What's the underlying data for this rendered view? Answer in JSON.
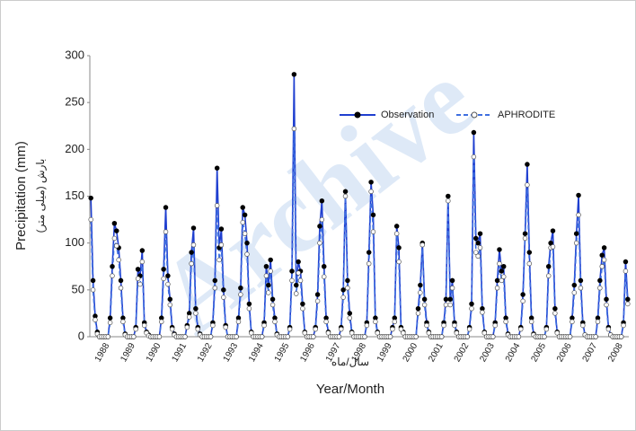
{
  "chart_data": {
    "type": "line",
    "watermark": "Archive",
    "y_label": "Precipitation (mm)",
    "y_label_alt": "بارش (میلی متر)",
    "x_label": "Year/Month",
    "x_label_alt": "سال/ماه",
    "legend": "top-right",
    "ylim": [
      0,
      300
    ],
    "yticks": [
      0,
      50,
      100,
      150,
      200,
      250,
      300
    ],
    "categories": [
      null,
      null,
      null,
      null,
      null,
      null,
      "1988",
      null,
      null,
      null,
      null,
      null,
      null,
      null,
      null,
      null,
      null,
      null,
      "1989",
      null,
      null,
      null,
      null,
      null,
      null,
      null,
      null,
      null,
      null,
      null,
      "1990",
      null,
      null,
      null,
      null,
      null,
      null,
      null,
      null,
      null,
      null,
      null,
      "1991",
      null,
      null,
      null,
      null,
      null,
      null,
      null,
      null,
      null,
      null,
      null,
      "1992",
      null,
      null,
      null,
      null,
      null,
      null,
      null,
      null,
      null,
      null,
      null,
      "1993",
      null,
      null,
      null,
      null,
      null,
      null,
      null,
      null,
      null,
      null,
      null,
      "1994",
      null,
      null,
      null,
      null,
      null,
      null,
      null,
      null,
      null,
      null,
      null,
      "1995",
      null,
      null,
      null,
      null,
      null,
      null,
      null,
      null,
      null,
      null,
      null,
      "1996",
      null,
      null,
      null,
      null,
      null,
      null,
      null,
      null,
      null,
      null,
      null,
      "1997",
      null,
      null,
      null,
      null,
      null,
      null,
      null,
      null,
      null,
      null,
      null,
      "1998",
      null,
      null,
      null,
      null,
      null,
      null,
      null,
      null,
      null,
      null,
      null,
      "1999",
      null,
      null,
      null,
      null,
      null,
      null,
      null,
      null,
      null,
      null,
      null,
      "2000",
      null,
      null,
      null,
      null,
      null,
      null,
      null,
      null,
      null,
      null,
      null,
      "2001",
      null,
      null,
      null,
      null,
      null,
      null,
      null,
      null,
      null,
      null,
      null,
      "2002",
      null,
      null,
      null,
      null,
      null,
      null,
      null,
      null,
      null,
      null,
      null,
      "2003",
      null,
      null,
      null,
      null,
      null,
      null,
      null,
      null,
      null,
      null,
      null,
      "2004",
      null,
      null,
      null,
      null,
      null,
      null,
      null,
      null,
      null,
      null,
      null,
      "2005",
      null,
      null,
      null,
      null,
      null,
      null,
      null,
      null,
      null,
      null,
      null,
      "2006",
      null,
      null,
      null,
      null,
      null,
      null,
      null,
      null,
      null,
      null,
      null,
      "2007",
      null,
      null,
      null,
      null,
      null,
      null,
      null,
      null,
      null,
      null,
      null,
      "2008",
      null,
      null,
      null,
      null,
      null
    ],
    "series": [
      {
        "name": "Observation",
        "color": "#1f3fd0",
        "marker": "#000000",
        "dashed": false,
        "values": [
          148,
          60,
          22,
          5,
          0,
          0,
          0,
          0,
          0,
          20,
          75,
          121,
          113,
          95,
          60,
          20,
          3,
          0,
          0,
          0,
          0,
          10,
          72,
          65,
          92,
          15,
          5,
          2,
          0,
          0,
          0,
          0,
          0,
          20,
          72,
          138,
          65,
          40,
          10,
          3,
          0,
          0,
          0,
          0,
          0,
          12,
          25,
          90,
          116,
          30,
          10,
          3,
          0,
          0,
          0,
          0,
          0,
          15,
          60,
          180,
          95,
          115,
          50,
          12,
          0,
          0,
          0,
          0,
          0,
          20,
          52,
          138,
          130,
          100,
          35,
          5,
          0,
          0,
          0,
          0,
          0,
          15,
          75,
          55,
          82,
          40,
          20,
          3,
          0,
          0,
          0,
          0,
          0,
          10,
          70,
          280,
          55,
          80,
          70,
          35,
          5,
          0,
          0,
          0,
          0,
          10,
          45,
          118,
          145,
          75,
          20,
          5,
          0,
          0,
          0,
          0,
          0,
          10,
          50,
          155,
          60,
          25,
          5,
          0,
          0,
          0,
          0,
          0,
          0,
          15,
          90,
          165,
          130,
          20,
          5,
          0,
          0,
          0,
          0,
          0,
          0,
          10,
          20,
          118,
          95,
          10,
          5,
          0,
          0,
          0,
          0,
          0,
          0,
          30,
          55,
          100,
          40,
          15,
          5,
          0,
          0,
          0,
          0,
          0,
          0,
          15,
          40,
          150,
          40,
          60,
          15,
          5,
          0,
          0,
          0,
          0,
          0,
          10,
          35,
          218,
          105,
          100,
          110,
          30,
          5,
          0,
          0,
          0,
          0,
          15,
          60,
          93,
          70,
          75,
          20,
          3,
          0,
          0,
          0,
          0,
          0,
          10,
          45,
          110,
          184,
          90,
          20,
          3,
          0,
          0,
          0,
          0,
          0,
          10,
          75,
          100,
          113,
          30,
          5,
          0,
          0,
          0,
          0,
          0,
          0,
          20,
          55,
          110,
          151,
          60,
          15,
          2,
          0,
          0,
          0,
          0,
          0,
          20,
          60,
          87,
          95,
          40,
          10,
          2,
          0,
          0,
          0,
          0,
          0,
          15,
          80,
          40
        ]
      },
      {
        "name": "APHRODITE",
        "color": "#3f6fe0",
        "marker": "#ffffff",
        "dashed": true,
        "values": [
          125,
          50,
          18,
          3,
          0,
          0,
          0,
          0,
          0,
          15,
          65,
          105,
          97,
          82,
          52,
          16,
          2,
          0,
          0,
          0,
          0,
          8,
          62,
          56,
          80,
          12,
          4,
          1,
          0,
          0,
          0,
          0,
          0,
          16,
          62,
          112,
          56,
          34,
          8,
          2,
          0,
          0,
          0,
          0,
          0,
          10,
          21,
          78,
          98,
          25,
          8,
          2,
          0,
          0,
          0,
          0,
          0,
          12,
          52,
          140,
          82,
          98,
          42,
          10,
          0,
          0,
          0,
          0,
          0,
          16,
          45,
          122,
          110,
          88,
          30,
          4,
          0,
          0,
          0,
          0,
          0,
          12,
          65,
          47,
          70,
          34,
          16,
          2,
          0,
          0,
          0,
          0,
          0,
          8,
          60,
          222,
          46,
          68,
          60,
          30,
          4,
          0,
          0,
          0,
          0,
          8,
          38,
          100,
          125,
          64,
          16,
          4,
          0,
          0,
          0,
          0,
          0,
          8,
          42,
          150,
          52,
          20,
          4,
          0,
          0,
          0,
          0,
          0,
          0,
          12,
          78,
          155,
          112,
          16,
          4,
          0,
          0,
          0,
          0,
          0,
          0,
          8,
          16,
          110,
          80,
          8,
          4,
          0,
          0,
          0,
          0,
          0,
          0,
          25,
          47,
          98,
          34,
          12,
          4,
          0,
          0,
          0,
          0,
          0,
          0,
          12,
          34,
          145,
          34,
          52,
          12,
          4,
          0,
          0,
          0,
          0,
          0,
          8,
          30,
          192,
          90,
          86,
          95,
          26,
          4,
          0,
          0,
          0,
          0,
          12,
          52,
          78,
          60,
          64,
          16,
          2,
          0,
          0,
          0,
          0,
          0,
          8,
          38,
          105,
          162,
          78,
          16,
          2,
          0,
          0,
          0,
          0,
          0,
          8,
          65,
          95,
          96,
          25,
          4,
          0,
          0,
          0,
          0,
          0,
          0,
          16,
          47,
          100,
          130,
          52,
          12,
          2,
          0,
          0,
          0,
          0,
          0,
          16,
          52,
          75,
          82,
          34,
          8,
          2,
          0,
          0,
          0,
          0,
          0,
          12,
          70,
          35
        ]
      }
    ]
  }
}
